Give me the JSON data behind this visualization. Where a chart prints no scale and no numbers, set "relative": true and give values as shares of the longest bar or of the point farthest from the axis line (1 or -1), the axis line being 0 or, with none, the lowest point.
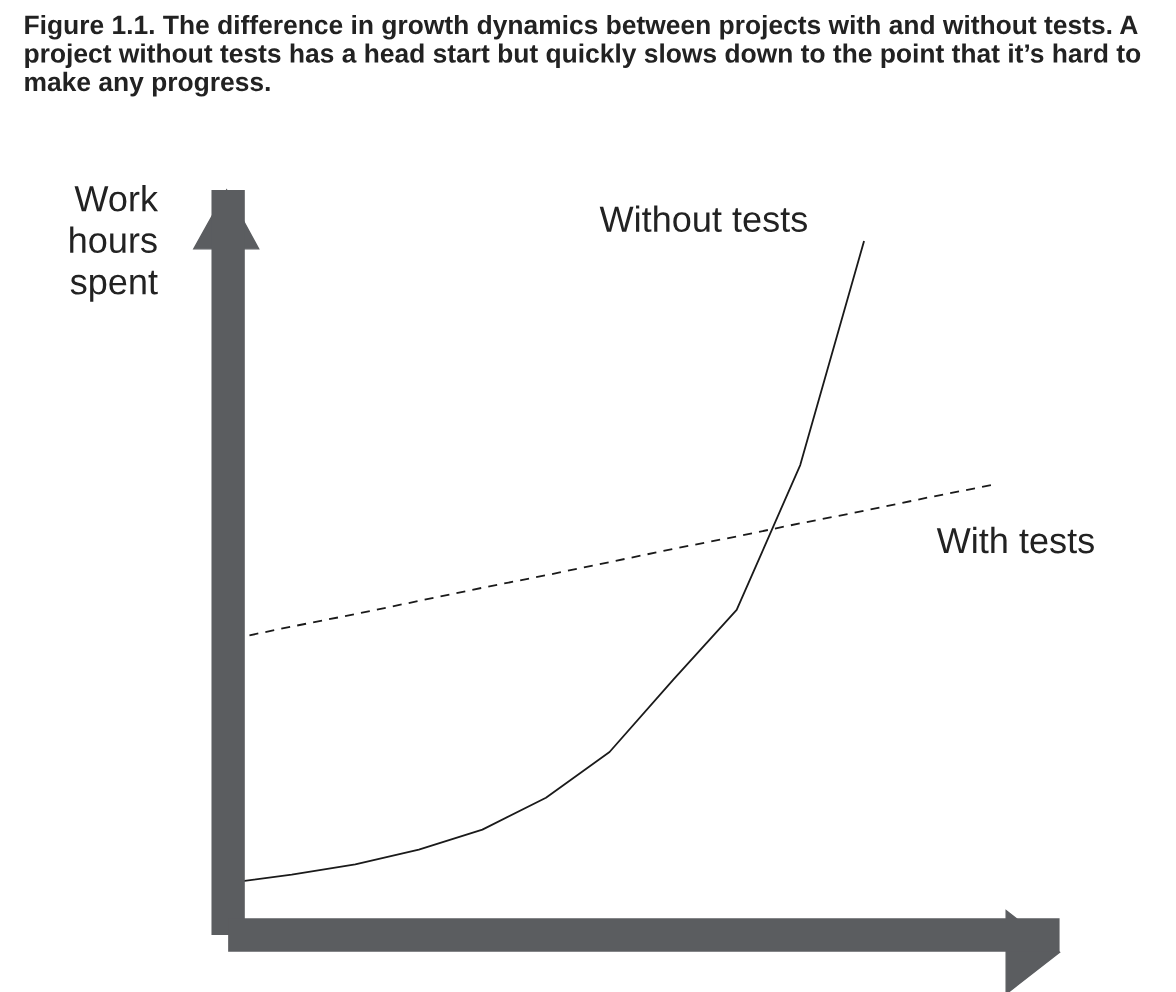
{
  "chart_data": {
    "type": "line",
    "relative": true,
    "title": "Figure 1.1. The difference in growth dynamics between projects with and without tests. A project without tests has a head start but quickly slows down to the point that it’s hard to make any progress.",
    "ylabel": "Work\nhours\nspent",
    "categories": [
      null,
      null,
      null,
      null,
      null,
      null,
      null,
      null,
      null,
      null,
      null,
      null,
      null
    ],
    "series": [
      {
        "name": "Without tests",
        "color": "#1a1a1a",
        "line_style": "solid",
        "values": [
          0.075,
          0.087,
          0.102,
          0.123,
          0.152,
          0.198,
          0.264,
          0.368,
          0.469,
          0.678,
          1.0,
          null,
          null
        ]
      },
      {
        "name": "With tests",
        "color": "#1a1a1a",
        "line_style": "dashed",
        "values": [
          0.426,
          0.445,
          0.463,
          0.482,
          0.501,
          0.519,
          0.538,
          0.557,
          0.575,
          0.594,
          0.612,
          0.631,
          0.649
        ]
      }
    ],
    "grid": false,
    "legend": false,
    "marker": "none"
  }
}
